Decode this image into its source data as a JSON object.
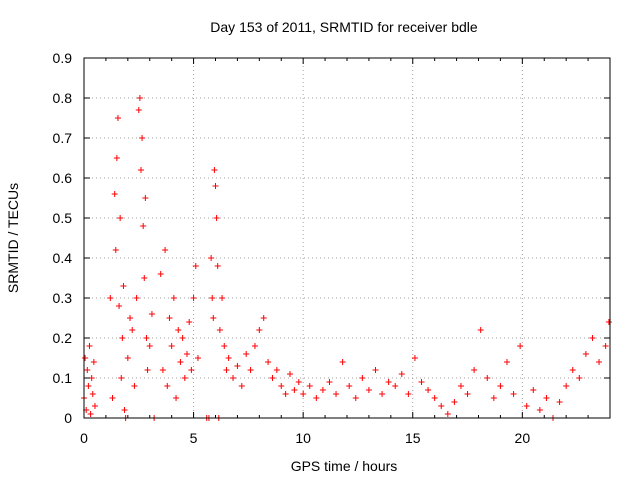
{
  "chart_data": {
    "type": "scatter",
    "title": "Day 153 of 2011, SRMTID for receiver bdle",
    "xlabel": "GPS time / hours",
    "ylabel": "SRMTID / TECUs",
    "xlim": [
      0,
      24
    ],
    "ylim": [
      0,
      0.9
    ],
    "x_ticks": [
      0,
      5,
      10,
      15,
      20
    ],
    "x_tick_labels": [
      "0",
      "5",
      "10",
      "15",
      "20"
    ],
    "y_ticks": [
      0,
      0.1,
      0.2,
      0.3,
      0.4,
      0.5,
      0.6,
      0.7,
      0.8,
      0.9
    ],
    "y_tick_labels": [
      "0",
      "0.1",
      "0.2",
      "0.3",
      "0.4",
      "0.5",
      "0.6",
      "0.7",
      "0.8",
      "0.9"
    ],
    "grid": true,
    "marker": "+",
    "marker_color": "#ff0000",
    "series": [
      {
        "name": "SRMTID",
        "x": [
          0.0,
          0.05,
          0.1,
          0.15,
          0.2,
          0.25,
          0.3,
          0.35,
          0.4,
          0.45,
          0.5,
          1.2,
          1.3,
          1.4,
          1.45,
          1.5,
          1.55,
          1.6,
          1.65,
          1.7,
          1.75,
          1.8,
          1.85,
          1.9,
          2.0,
          2.1,
          2.2,
          2.3,
          2.4,
          2.5,
          2.55,
          2.6,
          2.65,
          2.7,
          2.75,
          2.8,
          2.85,
          2.9,
          3.0,
          3.1,
          3.2,
          3.5,
          3.6,
          3.7,
          3.8,
          3.9,
          4.0,
          4.1,
          4.2,
          4.3,
          4.4,
          4.5,
          4.6,
          4.7,
          4.8,
          4.9,
          5.0,
          5.1,
          5.2,
          5.6,
          5.7,
          5.8,
          5.85,
          5.9,
          5.95,
          6.0,
          6.05,
          6.1,
          6.15,
          6.2,
          6.3,
          6.4,
          6.5,
          6.6,
          6.8,
          7.0,
          7.2,
          7.4,
          7.6,
          7.8,
          8.0,
          8.2,
          8.4,
          8.6,
          8.8,
          9.0,
          9.2,
          9.4,
          9.6,
          9.8,
          10.0,
          10.3,
          10.6,
          10.9,
          11.2,
          11.5,
          11.8,
          12.1,
          12.4,
          12.7,
          13.0,
          13.3,
          13.6,
          13.9,
          14.2,
          14.5,
          14.8,
          15.1,
          15.4,
          15.7,
          16.0,
          16.3,
          16.6,
          16.9,
          17.2,
          17.5,
          17.8,
          18.1,
          18.4,
          18.7,
          19.0,
          19.3,
          19.6,
          19.9,
          20.2,
          20.5,
          20.8,
          21.1,
          21.4,
          21.7,
          22.0,
          22.3,
          22.6,
          22.9,
          23.2,
          23.5,
          23.8,
          23.95
        ],
        "y": [
          0.05,
          0.15,
          0.02,
          0.12,
          0.08,
          0.18,
          0.01,
          0.1,
          0.06,
          0.14,
          0.03,
          0.3,
          0.05,
          0.56,
          0.42,
          0.65,
          0.75,
          0.28,
          0.5,
          0.1,
          0.2,
          0.33,
          0.02,
          0.0,
          0.15,
          0.25,
          0.22,
          0.08,
          0.3,
          0.77,
          0.8,
          0.62,
          0.7,
          0.48,
          0.35,
          0.55,
          0.2,
          0.12,
          0.18,
          0.26,
          0.0,
          0.36,
          0.12,
          0.42,
          0.08,
          0.25,
          0.18,
          0.3,
          0.05,
          0.22,
          0.14,
          0.2,
          0.1,
          0.16,
          0.24,
          0.12,
          0.3,
          0.38,
          0.15,
          0.0,
          0.0,
          0.4,
          0.3,
          0.25,
          0.62,
          0.58,
          0.5,
          0.38,
          0.0,
          0.22,
          0.3,
          0.18,
          0.12,
          0.15,
          0.1,
          0.13,
          0.08,
          0.16,
          0.12,
          0.18,
          0.22,
          0.25,
          0.14,
          0.1,
          0.12,
          0.08,
          0.06,
          0.11,
          0.07,
          0.09,
          0.06,
          0.08,
          0.05,
          0.07,
          0.09,
          0.06,
          0.14,
          0.08,
          0.05,
          0.1,
          0.07,
          0.12,
          0.06,
          0.09,
          0.08,
          0.11,
          0.06,
          0.15,
          0.09,
          0.07,
          0.05,
          0.03,
          0.01,
          0.04,
          0.08,
          0.06,
          0.12,
          0.22,
          0.1,
          0.05,
          0.08,
          0.14,
          0.06,
          0.18,
          0.03,
          0.07,
          0.02,
          0.05,
          0.0,
          0.04,
          0.08,
          0.12,
          0.1,
          0.16,
          0.2,
          0.14,
          0.18,
          0.24
        ]
      }
    ]
  }
}
